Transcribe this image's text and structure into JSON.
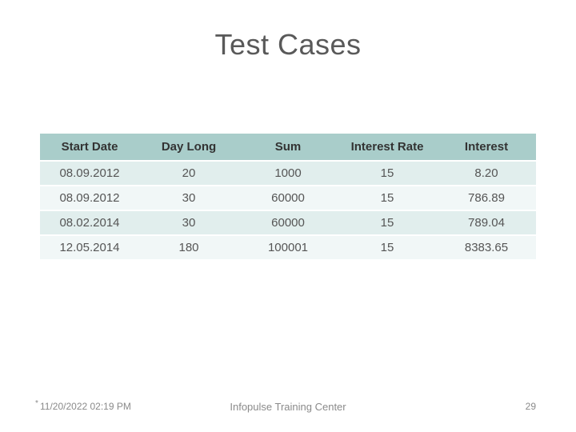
{
  "title": "Test Cases",
  "table": {
    "columns": [
      "Start Date",
      "Day Long",
      "Sum",
      "Interest Rate",
      "Interest"
    ],
    "rows": [
      [
        "08.09.2012",
        "20",
        "1000",
        "15",
        "8.20"
      ],
      [
        "08.09.2012",
        "30",
        "60000",
        "15",
        "786.89"
      ],
      [
        "08.02.2014",
        "30",
        "60000",
        "15",
        "789.04"
      ],
      [
        "12.05.2014",
        "180",
        "100001",
        "15",
        "8383.65"
      ]
    ],
    "header_bg": "#a9cdca",
    "row_odd_bg": "#e1eeed",
    "row_even_bg": "#f1f7f7",
    "header_text_color": "#333333",
    "cell_text_color": "#555555",
    "header_fontsize": 15,
    "cell_fontsize": 15
  },
  "footer": {
    "timestamp": "11/20/2022 02:19 PM",
    "marker": "*",
    "center": "Infopulse Training Center",
    "page": "29"
  },
  "colors": {
    "background": "#ffffff",
    "title_color": "#595959",
    "footer_color": "#8a8a8a"
  }
}
